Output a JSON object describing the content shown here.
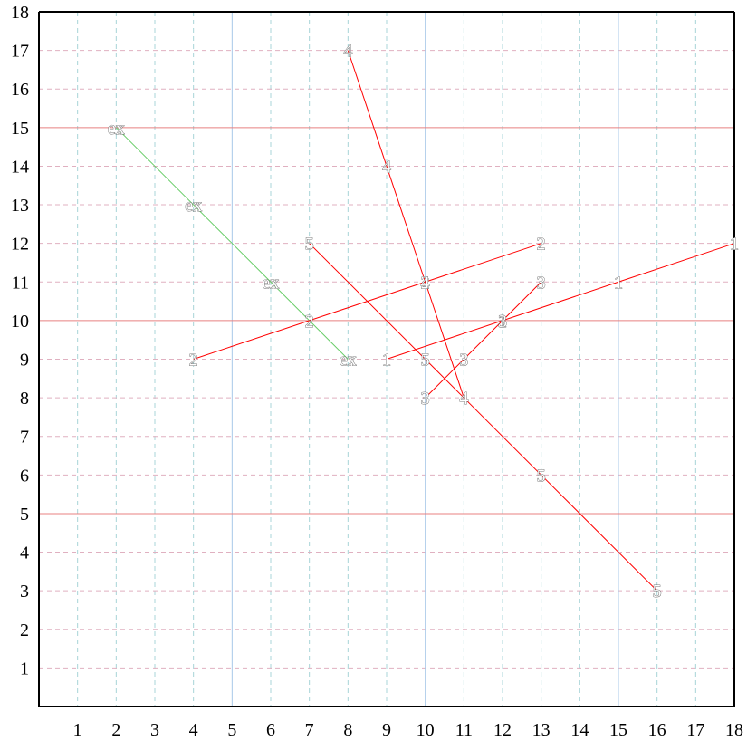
{
  "chart_data": {
    "type": "line",
    "title": "",
    "xlabel": "",
    "ylabel": "",
    "xlim": [
      0,
      18
    ],
    "ylim": [
      0,
      18
    ],
    "x_ticks": [
      "1",
      "2",
      "3",
      "4",
      "5",
      "6",
      "7",
      "8",
      "9",
      "10",
      "11",
      "12",
      "13",
      "14",
      "15",
      "16",
      "17",
      "18"
    ],
    "y_ticks": [
      "1",
      "2",
      "3",
      "4",
      "5",
      "6",
      "7",
      "8",
      "9",
      "10",
      "11",
      "12",
      "13",
      "14",
      "15",
      "16",
      "17",
      "18"
    ],
    "grid": true,
    "colors": {
      "axis": "#000000",
      "minor_grid_vertical": "#a8d4d8",
      "minor_grid_horizontal": "#e0b0c0",
      "major_grid_vertical": "#a8c8e8",
      "major_grid_horizontal": "#e88080",
      "series_red": "#ff0000",
      "series_green": "#66cc66"
    },
    "major_vertical_x": [
      5,
      10,
      15
    ],
    "major_horizontal_y": [
      5,
      10,
      15
    ],
    "series": [
      {
        "label": "ex",
        "color": "#66cc66",
        "points": [
          [
            2,
            15
          ],
          [
            4,
            13
          ],
          [
            6,
            11
          ],
          [
            8,
            9
          ]
        ]
      },
      {
        "label": "1",
        "color": "#ff0000",
        "points": [
          [
            9,
            9
          ],
          [
            12,
            10
          ],
          [
            15,
            11
          ],
          [
            18,
            12
          ]
        ]
      },
      {
        "label": "2",
        "color": "#ff0000",
        "points": [
          [
            4,
            9
          ],
          [
            7,
            10
          ],
          [
            10,
            11
          ],
          [
            13,
            12
          ]
        ]
      },
      {
        "label": "3",
        "color": "#ff0000",
        "points": [
          [
            10,
            8
          ],
          [
            11,
            9
          ],
          [
            12,
            10
          ],
          [
            13,
            11
          ]
        ]
      },
      {
        "label": "4",
        "color": "#ff0000",
        "points": [
          [
            8,
            17
          ],
          [
            9,
            14
          ],
          [
            10,
            11
          ],
          [
            11,
            8
          ]
        ]
      },
      {
        "label": "5",
        "color": "#ff0000",
        "points": [
          [
            7,
            12
          ],
          [
            10,
            9
          ],
          [
            13,
            6
          ],
          [
            16,
            3
          ]
        ]
      }
    ]
  }
}
